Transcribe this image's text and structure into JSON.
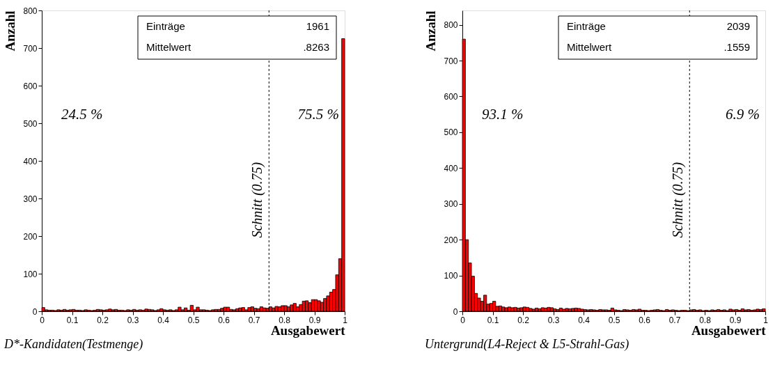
{
  "chart_data": [
    {
      "type": "histogram",
      "title": "D*-Kandidaten(Testmenge)",
      "xlabel": "Ausgabewert",
      "ylabel": "Anzahl",
      "color": "#ff0000",
      "bins": [
        0,
        0.01,
        0.02,
        0.03,
        0.04,
        0.05,
        0.06,
        0.07,
        0.08,
        0.09,
        0.1,
        0.11,
        0.12,
        0.13,
        0.14,
        0.15,
        0.16,
        0.17,
        0.18,
        0.19,
        0.2,
        0.21,
        0.22,
        0.23,
        0.24,
        0.25,
        0.26,
        0.27,
        0.28,
        0.29,
        0.3,
        0.31,
        0.32,
        0.33,
        0.34,
        0.35,
        0.36,
        0.37,
        0.38,
        0.39,
        0.4,
        0.41,
        0.42,
        0.43,
        0.44,
        0.45,
        0.46,
        0.47,
        0.48,
        0.49,
        0.5,
        0.51,
        0.52,
        0.53,
        0.54,
        0.55,
        0.56,
        0.57,
        0.58,
        0.59,
        0.6,
        0.61,
        0.62,
        0.63,
        0.64,
        0.65,
        0.66,
        0.67,
        0.68,
        0.69,
        0.7,
        0.71,
        0.72,
        0.73,
        0.74,
        0.75,
        0.76,
        0.77,
        0.78,
        0.79,
        0.8,
        0.81,
        0.82,
        0.83,
        0.84,
        0.85,
        0.86,
        0.87,
        0.88,
        0.89,
        0.9,
        0.91,
        0.92,
        0.93,
        0.94,
        0.95,
        0.96,
        0.97,
        0.98,
        0.99,
        1
      ],
      "values": [
        10,
        4,
        3,
        3,
        2,
        4,
        3,
        5,
        3,
        4,
        5,
        3,
        3,
        2,
        4,
        3,
        2,
        3,
        5,
        4,
        3,
        4,
        6,
        4,
        5,
        3,
        3,
        2,
        4,
        3,
        5,
        3,
        4,
        3,
        6,
        5,
        4,
        2,
        4,
        7,
        4,
        3,
        4,
        2,
        4,
        11,
        4,
        9,
        3,
        16,
        4,
        11,
        4,
        4,
        3,
        2,
        4,
        5,
        5,
        8,
        11,
        11,
        5,
        4,
        7,
        9,
        10,
        4,
        10,
        12,
        8,
        7,
        12,
        9,
        8,
        12,
        9,
        13,
        12,
        15,
        15,
        12,
        17,
        21,
        12,
        18,
        27,
        28,
        23,
        31,
        31,
        28,
        24,
        34,
        41,
        51,
        58,
        97,
        140,
        725
      ],
      "xlim": [
        0,
        1
      ],
      "xticks": [
        0,
        0.1,
        0.2,
        0.3,
        0.4,
        0.5,
        0.6,
        0.7,
        0.8,
        0.9,
        1
      ],
      "ylim": [
        0,
        800
      ],
      "yticks": [
        0,
        100,
        200,
        300,
        400,
        500,
        600,
        700,
        800
      ],
      "ref_lines": [
        {
          "axis": "x",
          "value": 0.75,
          "label": "Schnitt (0.75)",
          "line_style": "dashed"
        }
      ],
      "annotations": [
        "Einträge",
        "1961",
        "Mittelwert",
        ".8263",
        "24.5 %",
        "75.5 %"
      ],
      "grid": false
    },
    {
      "type": "histogram",
      "title": "Untergrund(L4-Reject & L5-Strahl-Gas)",
      "xlabel": "Ausgabewert",
      "ylabel": "Anzahl",
      "color": "#ff0000",
      "bins": [
        0,
        0.01,
        0.02,
        0.03,
        0.04,
        0.05,
        0.06,
        0.07,
        0.08,
        0.09,
        0.1,
        0.11,
        0.12,
        0.13,
        0.14,
        0.15,
        0.16,
        0.17,
        0.18,
        0.19,
        0.2,
        0.21,
        0.22,
        0.23,
        0.24,
        0.25,
        0.26,
        0.27,
        0.28,
        0.29,
        0.3,
        0.31,
        0.32,
        0.33,
        0.34,
        0.35,
        0.36,
        0.37,
        0.38,
        0.39,
        0.4,
        0.41,
        0.42,
        0.43,
        0.44,
        0.45,
        0.46,
        0.47,
        0.48,
        0.49,
        0.5,
        0.51,
        0.52,
        0.53,
        0.54,
        0.55,
        0.56,
        0.57,
        0.58,
        0.59,
        0.6,
        0.61,
        0.62,
        0.63,
        0.64,
        0.65,
        0.66,
        0.67,
        0.68,
        0.69,
        0.7,
        0.71,
        0.72,
        0.73,
        0.74,
        0.75,
        0.76,
        0.77,
        0.78,
        0.79,
        0.8,
        0.81,
        0.82,
        0.83,
        0.84,
        0.85,
        0.86,
        0.87,
        0.88,
        0.89,
        0.9,
        0.91,
        0.92,
        0.93,
        0.94,
        0.95,
        0.96,
        0.97,
        0.98,
        0.99,
        1
      ],
      "values": [
        760,
        200,
        135,
        98,
        50,
        37,
        28,
        45,
        20,
        22,
        28,
        14,
        15,
        12,
        10,
        12,
        10,
        11,
        9,
        10,
        12,
        11,
        8,
        6,
        9,
        7,
        10,
        9,
        11,
        10,
        7,
        5,
        9,
        6,
        8,
        7,
        8,
        9,
        8,
        6,
        5,
        4,
        5,
        4,
        3,
        5,
        4,
        4,
        3,
        9,
        4,
        3,
        2,
        5,
        4,
        3,
        5,
        4,
        6,
        3,
        3,
        2,
        3,
        4,
        5,
        3,
        2,
        5,
        3,
        4,
        3,
        2,
        3,
        3,
        2,
        4,
        5,
        3,
        4,
        2,
        3,
        2,
        4,
        3,
        5,
        3,
        4,
        2,
        6,
        4,
        5,
        3,
        7,
        4,
        5,
        3,
        4,
        6,
        5,
        7
      ],
      "xlim": [
        0,
        1
      ],
      "xticks": [
        0,
        0.1,
        0.2,
        0.3,
        0.4,
        0.5,
        0.6,
        0.7,
        0.8,
        0.9,
        1
      ],
      "ylim": [
        0,
        840
      ],
      "yticks": [
        0,
        100,
        200,
        300,
        400,
        500,
        600,
        700,
        800
      ],
      "ref_lines": [
        {
          "axis": "x",
          "value": 0.75,
          "label": "Schnitt (0.75)",
          "line_style": "dashed"
        }
      ],
      "annotations": [
        "Einträge",
        "2039",
        "Mittelwert",
        ".1559",
        "93.1 %",
        "6.9 %"
      ],
      "grid": false
    }
  ]
}
